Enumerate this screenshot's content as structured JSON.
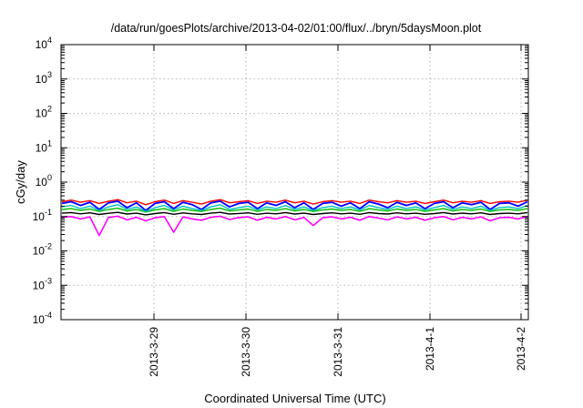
{
  "chart_data": {
    "type": "line",
    "title": "/data/run/goesPlots/archive/2013-04-02/01:00/flux/../bryn/5daysMoon.plot",
    "xlabel": "Coordinated Universal Time (UTC)",
    "ylabel": "cGy/day",
    "yscale": "log",
    "ylim": [
      0.0001,
      10000
    ],
    "xlim": [
      "2013-03-28 01:00",
      "2013-04-02 01:00"
    ],
    "x_ticks": [
      "2013-3-29",
      "2013-3-30",
      "2013-3-31",
      "2013-4-1",
      "2013-4-2"
    ],
    "y_ticks": [
      {
        "base": "10",
        "exp": "-4",
        "value": 0.0001
      },
      {
        "base": "10",
        "exp": "-3",
        "value": 0.001
      },
      {
        "base": "10",
        "exp": "-2",
        "value": 0.01
      },
      {
        "base": "10",
        "exp": "-1",
        "value": 0.1
      },
      {
        "base": "10",
        "exp": "0",
        "value": 1
      },
      {
        "base": "10",
        "exp": "1",
        "value": 10
      },
      {
        "base": "10",
        "exp": "2",
        "value": 100
      },
      {
        "base": "10",
        "exp": "3",
        "value": 1000
      },
      {
        "base": "10",
        "exp": "4",
        "value": 10000
      }
    ],
    "grid": true,
    "series": [
      {
        "color": "#ff0000",
        "values": [
          0.27,
          0.3,
          0.26,
          0.29,
          0.24,
          0.28,
          0.31,
          0.25,
          0.28,
          0.22,
          0.27,
          0.3,
          0.24,
          0.29,
          0.26,
          0.23,
          0.28,
          0.31,
          0.25,
          0.27,
          0.29,
          0.24,
          0.28,
          0.26,
          0.3,
          0.25,
          0.28,
          0.23,
          0.27,
          0.29,
          0.26,
          0.28,
          0.24,
          0.3,
          0.27,
          0.25,
          0.29,
          0.26,
          0.28,
          0.24,
          0.27,
          0.3,
          0.25,
          0.28,
          0.26,
          0.29,
          0.24,
          0.27,
          0.28,
          0.26,
          0.3
        ]
      },
      {
        "color": "#0000ff",
        "values": [
          0.24,
          0.27,
          0.21,
          0.26,
          0.16,
          0.25,
          0.28,
          0.18,
          0.25,
          0.15,
          0.24,
          0.27,
          0.17,
          0.26,
          0.22,
          0.16,
          0.25,
          0.28,
          0.19,
          0.24,
          0.26,
          0.17,
          0.25,
          0.21,
          0.27,
          0.18,
          0.25,
          0.16,
          0.24,
          0.26,
          0.2,
          0.25,
          0.17,
          0.27,
          0.23,
          0.18,
          0.26,
          0.21,
          0.25,
          0.17,
          0.24,
          0.27,
          0.18,
          0.25,
          0.22,
          0.26,
          0.16,
          0.24,
          0.25,
          0.2,
          0.27
        ]
      },
      {
        "color": "#00c000",
        "values": [
          0.16,
          0.17,
          0.15,
          0.165,
          0.14,
          0.16,
          0.175,
          0.145,
          0.16,
          0.135,
          0.155,
          0.17,
          0.14,
          0.165,
          0.15,
          0.14,
          0.16,
          0.175,
          0.145,
          0.155,
          0.165,
          0.14,
          0.16,
          0.15,
          0.17,
          0.145,
          0.16,
          0.14,
          0.155,
          0.165,
          0.15,
          0.16,
          0.14,
          0.17,
          0.155,
          0.145,
          0.165,
          0.15,
          0.16,
          0.14,
          0.155,
          0.17,
          0.145,
          0.16,
          0.15,
          0.165,
          0.14,
          0.155,
          0.16,
          0.15,
          0.17
        ]
      },
      {
        "color": "#00c0c0",
        "values": [
          0.19,
          0.21,
          0.17,
          0.2,
          0.15,
          0.19,
          0.22,
          0.16,
          0.19,
          0.14,
          0.18,
          0.21,
          0.155,
          0.2,
          0.17,
          0.15,
          0.19,
          0.22,
          0.16,
          0.18,
          0.2,
          0.155,
          0.19,
          0.17,
          0.21,
          0.16,
          0.19,
          0.15,
          0.18,
          0.2,
          0.17,
          0.19,
          0.155,
          0.21,
          0.18,
          0.16,
          0.2,
          0.17,
          0.19,
          0.155,
          0.18,
          0.21,
          0.16,
          0.19,
          0.17,
          0.2,
          0.15,
          0.18,
          0.19,
          0.17,
          0.21
        ]
      },
      {
        "color": "#000000",
        "values": [
          0.125,
          0.13,
          0.12,
          0.128,
          0.115,
          0.124,
          0.132,
          0.118,
          0.125,
          0.112,
          0.122,
          0.13,
          0.116,
          0.127,
          0.12,
          0.115,
          0.125,
          0.132,
          0.118,
          0.123,
          0.128,
          0.116,
          0.125,
          0.12,
          0.13,
          0.118,
          0.125,
          0.115,
          0.122,
          0.128,
          0.12,
          0.125,
          0.116,
          0.13,
          0.122,
          0.118,
          0.128,
          0.12,
          0.125,
          0.116,
          0.122,
          0.13,
          0.118,
          0.125,
          0.12,
          0.128,
          0.115,
          0.122,
          0.125,
          0.12,
          0.13
        ]
      },
      {
        "color": "#ff00ff",
        "values": [
          0.095,
          0.1,
          0.085,
          0.098,
          0.028,
          0.094,
          0.102,
          0.08,
          0.095,
          0.075,
          0.092,
          0.1,
          0.035,
          0.097,
          0.085,
          0.078,
          0.095,
          0.102,
          0.082,
          0.093,
          0.098,
          0.078,
          0.095,
          0.085,
          0.1,
          0.08,
          0.094,
          0.055,
          0.092,
          0.098,
          0.085,
          0.095,
          0.078,
          0.1,
          0.09,
          0.08,
          0.098,
          0.085,
          0.095,
          0.078,
          0.092,
          0.1,
          0.08,
          0.095,
          0.085,
          0.098,
          0.075,
          0.092,
          0.095,
          0.085,
          0.1
        ]
      }
    ]
  }
}
